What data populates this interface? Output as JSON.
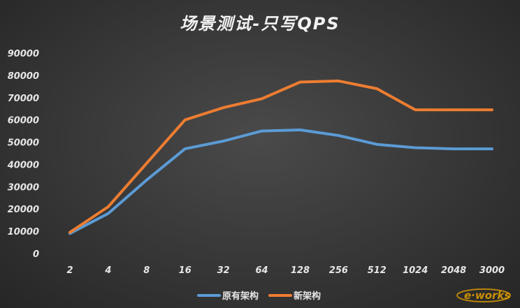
{
  "chart_data": {
    "type": "line",
    "title": "场景测试-只写QPS",
    "xlabel": "",
    "ylabel": "",
    "categories": [
      "2",
      "4",
      "8",
      "16",
      "32",
      "64",
      "128",
      "256",
      "512",
      "1024",
      "2048",
      "3000"
    ],
    "ylim": [
      0,
      90000
    ],
    "yticks": [
      "0",
      "10000",
      "20000",
      "30000",
      "40000",
      "50000",
      "60000",
      "70000",
      "80000",
      "90000"
    ],
    "grid": false,
    "legend": "bottom",
    "series": [
      {
        "name": "原有架构",
        "color": "#5b9bd5",
        "values": [
          9000,
          18000,
          33000,
          47000,
          50500,
          55000,
          55500,
          53000,
          49000,
          47500,
          47000,
          47000
        ]
      },
      {
        "name": "新架构",
        "color": "#ed7d31",
        "values": [
          9500,
          21000,
          40500,
          60000,
          65500,
          69500,
          77000,
          77500,
          74000,
          64500,
          64500,
          64500
        ]
      }
    ]
  },
  "watermark": {
    "text": "e-works",
    "color": "#e8a200"
  }
}
